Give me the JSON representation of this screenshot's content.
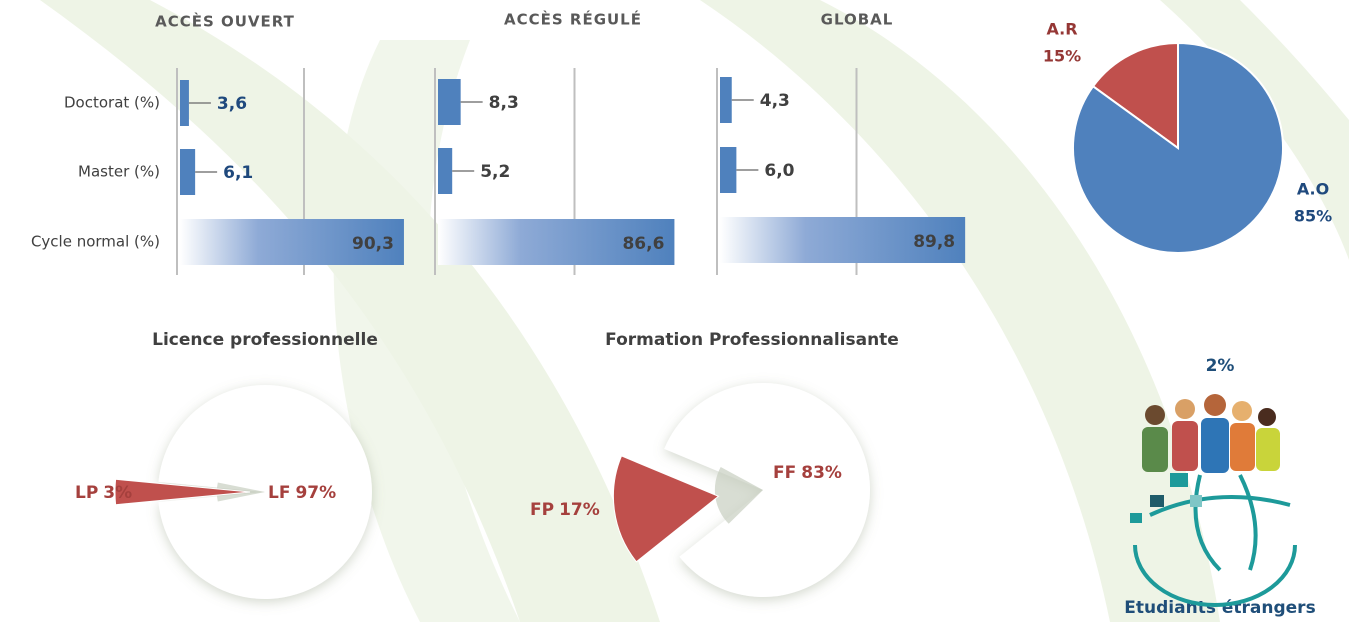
{
  "chart_data": [
    {
      "type": "hbar",
      "title": "ACCÈS OUVERT",
      "categories": [
        "Doctorat (%)",
        "Master (%)",
        "Cycle normal (%)"
      ],
      "values": [
        3.6,
        6.1,
        90.3
      ],
      "value_labels": [
        "3,6",
        "6,1",
        "90,3"
      ],
      "xlim": [
        0,
        100
      ],
      "color": "#4f81bd",
      "label_color": "#1f497d"
    },
    {
      "type": "hbar",
      "title": "ACCÈS RÉGULÉ",
      "values": [
        8.3,
        5.2,
        86.6
      ],
      "value_labels": [
        "8,3",
        "5,2",
        "86,6"
      ],
      "xlim": [
        0,
        100
      ],
      "color": "#4f81bd",
      "label_color": "#404040"
    },
    {
      "type": "hbar",
      "title": "GLOBAL",
      "values": [
        4.3,
        6.0,
        89.8
      ],
      "value_labels": [
        "4,3",
        "6,0",
        "89,8"
      ],
      "xlim": [
        0,
        100
      ],
      "color": "#4f81bd",
      "label_color": "#404040"
    },
    {
      "type": "pie",
      "categories": [
        "A.R",
        "A.O"
      ],
      "values": [
        15,
        85
      ],
      "value_labels": [
        "15%",
        "85%"
      ],
      "colors": [
        "#c0504d",
        "#4f81bd"
      ]
    },
    {
      "type": "exploded-pie",
      "title": "Licence professionnelle",
      "categories": [
        "LP",
        "LF"
      ],
      "values": [
        3,
        97
      ],
      "value_labels": [
        "3%",
        "97%"
      ],
      "colors": [
        "#c0504d",
        "#ffffff"
      ]
    },
    {
      "type": "exploded-pie",
      "title": "Formation Professionnalisante",
      "categories": [
        "FP",
        "FF"
      ],
      "values": [
        17,
        83
      ],
      "value_labels": [
        "17%",
        "83%"
      ],
      "colors": [
        "#c0504d",
        "#ffffff"
      ]
    },
    {
      "type": "stat",
      "title": "Etudiants étrangers",
      "value": 2,
      "value_label": "2%"
    }
  ]
}
